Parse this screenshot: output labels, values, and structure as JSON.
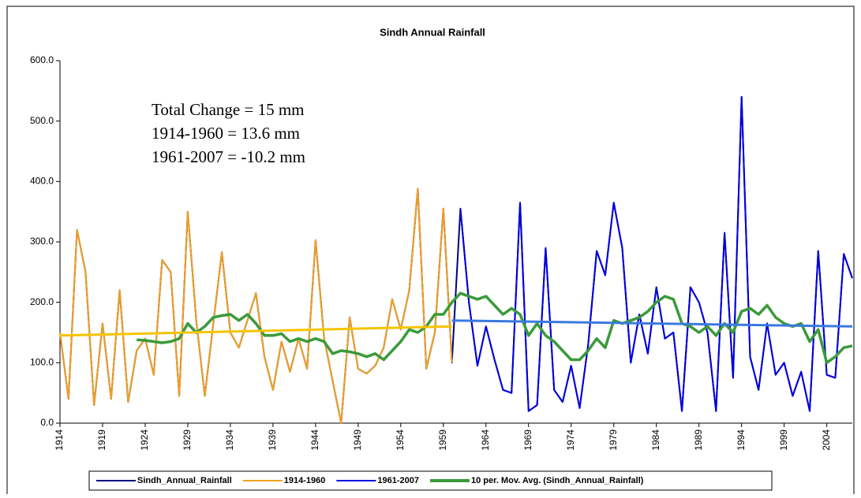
{
  "chart_data": {
    "type": "line",
    "title": "Sindh Annual Rainfall",
    "annotations": [
      "Total Change = 15 mm",
      "1914-1960 = 13.6 mm",
      "1961-2007 = -10.2 mm"
    ],
    "x": [
      1914,
      1915,
      1916,
      1917,
      1918,
      1919,
      1920,
      1921,
      1922,
      1923,
      1924,
      1925,
      1926,
      1927,
      1928,
      1929,
      1930,
      1931,
      1932,
      1933,
      1934,
      1935,
      1936,
      1937,
      1938,
      1939,
      1940,
      1941,
      1942,
      1943,
      1944,
      1945,
      1946,
      1947,
      1948,
      1949,
      1950,
      1951,
      1952,
      1953,
      1954,
      1955,
      1956,
      1957,
      1958,
      1959,
      1960,
      1961,
      1962,
      1963,
      1964,
      1965,
      1966,
      1967,
      1968,
      1969,
      1970,
      1971,
      1972,
      1973,
      1974,
      1975,
      1976,
      1977,
      1978,
      1979,
      1980,
      1981,
      1982,
      1983,
      1984,
      1985,
      1986,
      1987,
      1988,
      1989,
      1990,
      1991,
      1992,
      1993,
      1994,
      1995,
      1996,
      1997,
      1998,
      1999,
      2000,
      2001,
      2002,
      2003,
      2004,
      2005,
      2006,
      2007
    ],
    "xlim": [
      1914,
      2007
    ],
    "xticks": [
      1914,
      1919,
      1924,
      1929,
      1934,
      1939,
      1944,
      1949,
      1954,
      1959,
      1964,
      1969,
      1974,
      1979,
      1984,
      1989,
      1994,
      1999,
      2004
    ],
    "ylim": [
      0,
      600
    ],
    "yticks": [
      {
        "value": 0,
        "label": "0.0"
      },
      {
        "value": 100,
        "label": "100.0"
      },
      {
        "value": 200,
        "label": "200.0"
      },
      {
        "value": 300,
        "label": "300.0"
      },
      {
        "value": 400,
        "label": "400.0"
      },
      {
        "value": 500,
        "label": "500.0"
      },
      {
        "value": 600,
        "label": "600.0"
      }
    ],
    "series": [
      {
        "name": "Sindh_Annual_Rainfall",
        "color": "#000080",
        "values": [
          150,
          40,
          320,
          250,
          30,
          165,
          40,
          220,
          35,
          120,
          140,
          80,
          270,
          250,
          45,
          350,
          170,
          45,
          165,
          283,
          150,
          125,
          170,
          215,
          110,
          55,
          135,
          85,
          140,
          90,
          303,
          140,
          70,
          0,
          175,
          90,
          82,
          95,
          125,
          205,
          155,
          220,
          388,
          90,
          150,
          355,
          100,
          355,
          200,
          95,
          160,
          105,
          55,
          50,
          365,
          20,
          30,
          290,
          55,
          35,
          95,
          25,
          130,
          285,
          245,
          365,
          290,
          100,
          180,
          115,
          225,
          140,
          150,
          20,
          225,
          200,
          150,
          20,
          315,
          75,
          540,
          110,
          55,
          165,
          80,
          100,
          45,
          85,
          20,
          285,
          80,
          75,
          280,
          240
        ]
      },
      {
        "name": "1914-1960",
        "color": "#f0a020",
        "values": [
          150,
          40,
          320,
          250,
          30,
          165,
          40,
          220,
          35,
          120,
          140,
          80,
          270,
          250,
          45,
          350,
          170,
          45,
          165,
          283,
          150,
          125,
          170,
          215,
          110,
          55,
          135,
          85,
          140,
          90,
          303,
          140,
          70,
          0,
          175,
          90,
          82,
          95,
          125,
          205,
          155,
          220,
          388,
          90,
          150,
          355,
          100,
          null,
          null,
          null,
          null,
          null,
          null,
          null,
          null,
          null,
          null,
          null,
          null,
          null,
          null,
          null,
          null,
          null,
          null,
          null,
          null,
          null,
          null,
          null,
          null,
          null,
          null,
          null,
          null,
          null,
          null,
          null,
          null,
          null,
          null,
          null,
          null,
          null,
          null,
          null,
          null,
          null,
          null,
          null,
          null,
          null,
          null,
          null
        ]
      },
      {
        "name": "1961-2007",
        "color": "#0000e0",
        "values": [
          null,
          null,
          null,
          null,
          null,
          null,
          null,
          null,
          null,
          null,
          null,
          null,
          null,
          null,
          null,
          null,
          null,
          null,
          null,
          null,
          null,
          null,
          null,
          null,
          null,
          null,
          null,
          null,
          null,
          null,
          null,
          null,
          null,
          null,
          null,
          null,
          null,
          null,
          null,
          null,
          null,
          null,
          null,
          null,
          null,
          null,
          null,
          355,
          200,
          95,
          160,
          105,
          55,
          50,
          365,
          20,
          30,
          290,
          55,
          35,
          95,
          25,
          130,
          285,
          245,
          365,
          290,
          100,
          180,
          115,
          225,
          140,
          150,
          20,
          225,
          200,
          150,
          20,
          315,
          75,
          540,
          110,
          55,
          165,
          80,
          100,
          45,
          85,
          20,
          285,
          80,
          75,
          280,
          240
        ]
      },
      {
        "name": "10 per. Mov. Avg. (Sindh_Annual_Rainfall)",
        "color": "#3a9a3a",
        "values": [
          null,
          null,
          null,
          null,
          null,
          null,
          null,
          null,
          null,
          138,
          137,
          135,
          133,
          135,
          140,
          165,
          150,
          160,
          175,
          178,
          180,
          170,
          180,
          165,
          145,
          145,
          148,
          135,
          140,
          135,
          140,
          135,
          115,
          120,
          118,
          115,
          110,
          115,
          105,
          120,
          135,
          155,
          150,
          160,
          180,
          180,
          200,
          215,
          210,
          205,
          210,
          195,
          180,
          190,
          180,
          145,
          165,
          145,
          135,
          120,
          105,
          105,
          120,
          140,
          125,
          170,
          165,
          170,
          175,
          185,
          200,
          210,
          205,
          165,
          160,
          150,
          160,
          145,
          165,
          150,
          185,
          190,
          180,
          195,
          175,
          165,
          160,
          165,
          135,
          155,
          100,
          110,
          125,
          128
        ]
      }
    ],
    "trendlines": [
      {
        "color": "#f5c400",
        "x": [
          1914,
          1960
        ],
        "values": [
          145,
          160
        ]
      },
      {
        "color": "#3a7ae0",
        "x": [
          1960,
          2007
        ],
        "values": [
          170,
          160
        ]
      }
    ]
  }
}
